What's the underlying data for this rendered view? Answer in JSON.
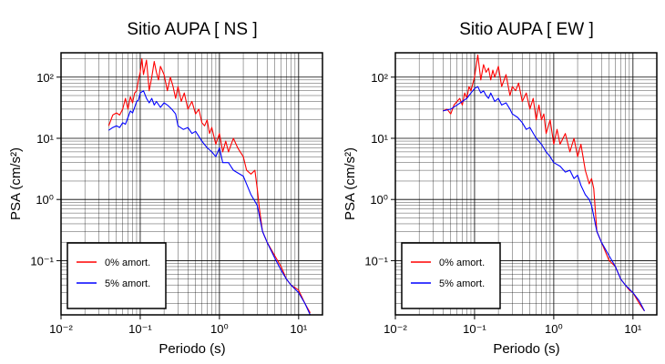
{
  "figure": {
    "legend_labels": [
      "0% amort.",
      "5% amort."
    ],
    "colors": {
      "undamped": "#ff0000",
      "damped": "#0000ff",
      "grid": "#000000",
      "frame": "#000000"
    }
  },
  "chart_data": [
    {
      "type": "line",
      "title": "Sitio AUPA [ NS ]",
      "xlabel": "Periodo (s)",
      "ylabel": "PSA (cm/s²)",
      "x_scale": "log",
      "y_scale": "log",
      "xlim": [
        0.01,
        20
      ],
      "ylim": [
        0.013,
        250
      ],
      "x_ticks": [
        {
          "value": 0.01,
          "label": "10⁻²"
        },
        {
          "value": 0.1,
          "label": "10⁻¹"
        },
        {
          "value": 1,
          "label": "10⁰"
        },
        {
          "value": 10,
          "label": "10¹"
        }
      ],
      "y_ticks": [
        {
          "value": 0.1,
          "label": "10⁻¹"
        },
        {
          "value": 1,
          "label": "10⁰"
        },
        {
          "value": 10,
          "label": "10¹"
        },
        {
          "value": 100,
          "label": "10²"
        }
      ],
      "grid": true,
      "legend_position": "bottom-left",
      "series": [
        {
          "name": "0% amort.",
          "color": "#ff0000",
          "points": [
            [
              0.04,
              16
            ],
            [
              0.045,
              24
            ],
            [
              0.05,
              26
            ],
            [
              0.055,
              24
            ],
            [
              0.06,
              30
            ],
            [
              0.065,
              45
            ],
            [
              0.07,
              30
            ],
            [
              0.075,
              48
            ],
            [
              0.08,
              38
            ],
            [
              0.085,
              55
            ],
            [
              0.09,
              60
            ],
            [
              0.095,
              90
            ],
            [
              0.1,
              120
            ],
            [
              0.105,
              200
            ],
            [
              0.11,
              110
            ],
            [
              0.12,
              190
            ],
            [
              0.13,
              60
            ],
            [
              0.14,
              100
            ],
            [
              0.15,
              180
            ],
            [
              0.16,
              120
            ],
            [
              0.17,
              90
            ],
            [
              0.18,
              150
            ],
            [
              0.2,
              110
            ],
            [
              0.22,
              60
            ],
            [
              0.24,
              100
            ],
            [
              0.26,
              70
            ],
            [
              0.28,
              45
            ],
            [
              0.3,
              70
            ],
            [
              0.33,
              40
            ],
            [
              0.36,
              55
            ],
            [
              0.4,
              30
            ],
            [
              0.45,
              40
            ],
            [
              0.5,
              25
            ],
            [
              0.55,
              30
            ],
            [
              0.6,
              18
            ],
            [
              0.65,
              16
            ],
            [
              0.7,
              20
            ],
            [
              0.75,
              12
            ],
            [
              0.8,
              15
            ],
            [
              0.9,
              8
            ],
            [
              1.0,
              12
            ],
            [
              1.1,
              6
            ],
            [
              1.2,
              9
            ],
            [
              1.3,
              6
            ],
            [
              1.5,
              10
            ],
            [
              1.7,
              7
            ],
            [
              2.0,
              5
            ],
            [
              2.2,
              3
            ],
            [
              2.5,
              2.6
            ],
            [
              2.8,
              3
            ],
            [
              3.0,
              1.5
            ],
            [
              3.2,
              0.7
            ],
            [
              3.5,
              0.3
            ],
            [
              4,
              0.2
            ],
            [
              5,
              0.12
            ],
            [
              6,
              0.08
            ],
            [
              7,
              0.05
            ],
            [
              8,
              0.04
            ],
            [
              10,
              0.033
            ],
            [
              12,
              0.02
            ],
            [
              14,
              0.014
            ]
          ]
        },
        {
          "name": "5% amort.",
          "color": "#0000ff",
          "points": [
            [
              0.04,
              13.5
            ],
            [
              0.045,
              15
            ],
            [
              0.05,
              16
            ],
            [
              0.055,
              15
            ],
            [
              0.06,
              18
            ],
            [
              0.065,
              17
            ],
            [
              0.07,
              22
            ],
            [
              0.075,
              28
            ],
            [
              0.08,
              26
            ],
            [
              0.085,
              32
            ],
            [
              0.09,
              40
            ],
            [
              0.095,
              42
            ],
            [
              0.1,
              55
            ],
            [
              0.11,
              60
            ],
            [
              0.12,
              45
            ],
            [
              0.13,
              38
            ],
            [
              0.14,
              45
            ],
            [
              0.15,
              35
            ],
            [
              0.16,
              40
            ],
            [
              0.18,
              32
            ],
            [
              0.2,
              38
            ],
            [
              0.22,
              35
            ],
            [
              0.25,
              30
            ],
            [
              0.28,
              25
            ],
            [
              0.3,
              16
            ],
            [
              0.35,
              14
            ],
            [
              0.4,
              15
            ],
            [
              0.45,
              12
            ],
            [
              0.5,
              13
            ],
            [
              0.6,
              9
            ],
            [
              0.7,
              7
            ],
            [
              0.8,
              6
            ],
            [
              0.9,
              5
            ],
            [
              1.0,
              7
            ],
            [
              1.1,
              4
            ],
            [
              1.3,
              4
            ],
            [
              1.5,
              3
            ],
            [
              2.0,
              2.4
            ],
            [
              2.5,
              1.2
            ],
            [
              3.0,
              0.8
            ],
            [
              3.5,
              0.3
            ],
            [
              4,
              0.2
            ],
            [
              5,
              0.11
            ],
            [
              6,
              0.07
            ],
            [
              7,
              0.05
            ],
            [
              8,
              0.04
            ],
            [
              10,
              0.03
            ],
            [
              12,
              0.02
            ],
            [
              14,
              0.013
            ]
          ]
        }
      ]
    },
    {
      "type": "line",
      "title": "Sitio AUPA [ EW ]",
      "xlabel": "Periodo (s)",
      "ylabel": "PSA (cm/s²)",
      "x_scale": "log",
      "y_scale": "log",
      "xlim": [
        0.01,
        20
      ],
      "ylim": [
        0.013,
        250
      ],
      "x_ticks": [
        {
          "value": 0.01,
          "label": "10⁻²"
        },
        {
          "value": 0.1,
          "label": "10⁻¹"
        },
        {
          "value": 1,
          "label": "10⁰"
        },
        {
          "value": 10,
          "label": "10¹"
        }
      ],
      "y_ticks": [
        {
          "value": 0.1,
          "label": "10⁻¹"
        },
        {
          "value": 1,
          "label": "10⁰"
        },
        {
          "value": 10,
          "label": "10¹"
        },
        {
          "value": 100,
          "label": "10²"
        }
      ],
      "grid": true,
      "legend_position": "bottom-left",
      "series": [
        {
          "name": "0% amort.",
          "color": "#ff0000",
          "points": [
            [
              0.04,
              28
            ],
            [
              0.045,
              30
            ],
            [
              0.05,
              25
            ],
            [
              0.055,
              35
            ],
            [
              0.06,
              40
            ],
            [
              0.065,
              45
            ],
            [
              0.07,
              35
            ],
            [
              0.075,
              55
            ],
            [
              0.08,
              45
            ],
            [
              0.085,
              70
            ],
            [
              0.09,
              60
            ],
            [
              0.1,
              100
            ],
            [
              0.11,
              230
            ],
            [
              0.12,
              90
            ],
            [
              0.13,
              160
            ],
            [
              0.14,
              120
            ],
            [
              0.15,
              140
            ],
            [
              0.16,
              90
            ],
            [
              0.17,
              130
            ],
            [
              0.18,
              100
            ],
            [
              0.2,
              150
            ],
            [
              0.22,
              70
            ],
            [
              0.25,
              110
            ],
            [
              0.28,
              50
            ],
            [
              0.3,
              70
            ],
            [
              0.33,
              60
            ],
            [
              0.36,
              80
            ],
            [
              0.4,
              40
            ],
            [
              0.45,
              55
            ],
            [
              0.5,
              30
            ],
            [
              0.55,
              45
            ],
            [
              0.6,
              20
            ],
            [
              0.65,
              35
            ],
            [
              0.7,
              20
            ],
            [
              0.75,
              25
            ],
            [
              0.8,
              12
            ],
            [
              0.9,
              20
            ],
            [
              1.0,
              8
            ],
            [
              1.1,
              14
            ],
            [
              1.2,
              8
            ],
            [
              1.4,
              12
            ],
            [
              1.6,
              6
            ],
            [
              1.8,
              10
            ],
            [
              2.0,
              5
            ],
            [
              2.2,
              8
            ],
            [
              2.5,
              3
            ],
            [
              2.8,
              1.8
            ],
            [
              3.0,
              2.2
            ],
            [
              3.2,
              1.5
            ],
            [
              3.5,
              0.3
            ],
            [
              4,
              0.2
            ],
            [
              5,
              0.1
            ],
            [
              6,
              0.08
            ],
            [
              7,
              0.05
            ],
            [
              8,
              0.04
            ],
            [
              9,
              0.033
            ],
            [
              10,
              0.03
            ],
            [
              12,
              0.02
            ],
            [
              14,
              0.015
            ]
          ]
        },
        {
          "name": "5% amort.",
          "color": "#0000ff",
          "points": [
            [
              0.04,
              28
            ],
            [
              0.05,
              30
            ],
            [
              0.06,
              35
            ],
            [
              0.07,
              40
            ],
            [
              0.08,
              45
            ],
            [
              0.09,
              55
            ],
            [
              0.1,
              65
            ],
            [
              0.11,
              70
            ],
            [
              0.12,
              55
            ],
            [
              0.13,
              60
            ],
            [
              0.14,
              50
            ],
            [
              0.15,
              45
            ],
            [
              0.16,
              55
            ],
            [
              0.18,
              40
            ],
            [
              0.2,
              45
            ],
            [
              0.22,
              35
            ],
            [
              0.25,
              38
            ],
            [
              0.28,
              30
            ],
            [
              0.3,
              25
            ],
            [
              0.35,
              22
            ],
            [
              0.4,
              18
            ],
            [
              0.45,
              14
            ],
            [
              0.5,
              15
            ],
            [
              0.6,
              10
            ],
            [
              0.7,
              8
            ],
            [
              0.8,
              6
            ],
            [
              0.9,
              5
            ],
            [
              1.0,
              4
            ],
            [
              1.2,
              3.5
            ],
            [
              1.4,
              2.8
            ],
            [
              1.6,
              3
            ],
            [
              1.8,
              2.2
            ],
            [
              2.0,
              2.5
            ],
            [
              2.2,
              1.7
            ],
            [
              2.5,
              1.2
            ],
            [
              2.8,
              1.0
            ],
            [
              3.0,
              0.8
            ],
            [
              3.5,
              0.3
            ],
            [
              4,
              0.2
            ],
            [
              5,
              0.12
            ],
            [
              6,
              0.08
            ],
            [
              7,
              0.05
            ],
            [
              8,
              0.04
            ],
            [
              10,
              0.03
            ],
            [
              12,
              0.022
            ],
            [
              14,
              0.015
            ]
          ]
        }
      ]
    }
  ]
}
